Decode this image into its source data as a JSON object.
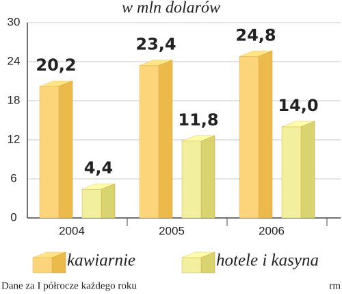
{
  "chart_data": {
    "type": "bar3d",
    "title": "w mln dolarów",
    "categories": [
      "2004",
      "2005",
      "2006"
    ],
    "series": [
      {
        "name": "kawiarnie",
        "color": "#fcd47a",
        "values": [
          20.2,
          23.4,
          24.8
        ],
        "value_labels": [
          "20,2",
          "23,4",
          "24,8"
        ]
      },
      {
        "name": "hotele i kasyna",
        "color": "#f2ef9e",
        "values": [
          4.4,
          11.8,
          14.0
        ],
        "value_labels": [
          "4,4",
          "11,8",
          "14,0"
        ]
      }
    ],
    "ylim": [
      0,
      30
    ],
    "yticks": [
      0,
      6,
      12,
      18,
      24,
      30
    ],
    "grid": true,
    "note": "Dane za I półrocze każdego roku",
    "credit": "rm"
  }
}
